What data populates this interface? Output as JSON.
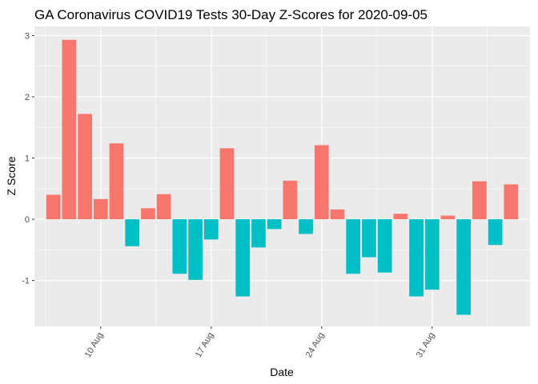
{
  "chart_data": {
    "type": "bar",
    "title": "GA Coronavirus COVID19 Tests 30-Day Z-Scores for 2020-09-05",
    "xlabel": "Date",
    "ylabel": "Z Score",
    "ylim": [
      -1.75,
      3.15
    ],
    "yticks": [
      -1,
      0,
      1,
      2,
      3
    ],
    "xticks": [
      {
        "label": "10 Aug",
        "date": "2020-08-10"
      },
      {
        "label": "17 Aug",
        "date": "2020-08-17"
      },
      {
        "label": "24 Aug",
        "date": "2020-08-24"
      },
      {
        "label": "31 Aug",
        "date": "2020-08-31"
      }
    ],
    "grid": true,
    "legend": "none",
    "colors": {
      "positive": "#F8766D",
      "negative": "#00BFC4",
      "panel": "#EBEBEB",
      "gridline": "#FFFFFF"
    },
    "x": [
      "2020-08-07",
      "2020-08-08",
      "2020-08-09",
      "2020-08-10",
      "2020-08-11",
      "2020-08-12",
      "2020-08-13",
      "2020-08-14",
      "2020-08-15",
      "2020-08-16",
      "2020-08-17",
      "2020-08-18",
      "2020-08-19",
      "2020-08-20",
      "2020-08-21",
      "2020-08-22",
      "2020-08-23",
      "2020-08-24",
      "2020-08-25",
      "2020-08-26",
      "2020-08-27",
      "2020-08-28",
      "2020-08-29",
      "2020-08-30",
      "2020-08-31",
      "2020-09-01",
      "2020-09-02",
      "2020-09-03",
      "2020-09-04",
      "2020-09-05"
    ],
    "values": [
      0.4,
      2.93,
      1.72,
      0.33,
      1.24,
      -0.44,
      0.18,
      0.41,
      -0.89,
      -0.99,
      -0.33,
      1.16,
      -1.26,
      -0.46,
      -0.16,
      0.63,
      -0.24,
      1.21,
      0.16,
      -0.89,
      -0.62,
      -0.87,
      0.09,
      -1.26,
      -1.15,
      0.06,
      -1.56,
      0.62,
      -0.42,
      0.57
    ]
  }
}
